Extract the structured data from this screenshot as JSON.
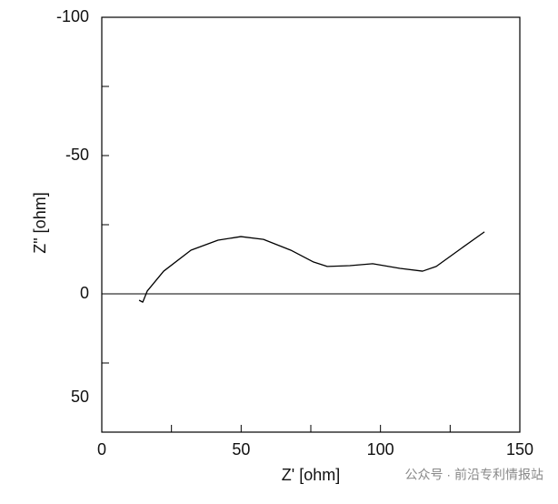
{
  "chart_data": {
    "type": "line",
    "x_label": "Z' [ohm]",
    "y_label": "Z\" [ohm]",
    "x": [
      13.4,
      14.7,
      16.3,
      22.2,
      32,
      41.7,
      49.9,
      58,
      67.8,
      76,
      80.9,
      89,
      97.2,
      107,
      115.1,
      120,
      128.1,
      137.3
    ],
    "series": [
      {
        "color": "#000000",
        "values": [
          2.3,
          3,
          -1,
          -8.2,
          -15.8,
          -19.4,
          -20.7,
          -19.7,
          -15.8,
          -11.5,
          -9.9,
          -10.2,
          -10.9,
          -9.2,
          -8.2,
          -9.9,
          -15.8,
          -22.4
        ]
      }
    ],
    "xlim": [
      0,
      150
    ],
    "xticks": [
      0,
      50,
      100,
      150
    ],
    "xminorticks": [
      25,
      75,
      125
    ],
    "ylim": [
      -100,
      50
    ],
    "yticks": [
      -100,
      -50,
      0,
      50
    ],
    "yminorticks": [
      -75,
      -25,
      25
    ],
    "y_inverted": true,
    "zero_line": true,
    "watermark": "公众号 · 前沿专利情报站"
  }
}
